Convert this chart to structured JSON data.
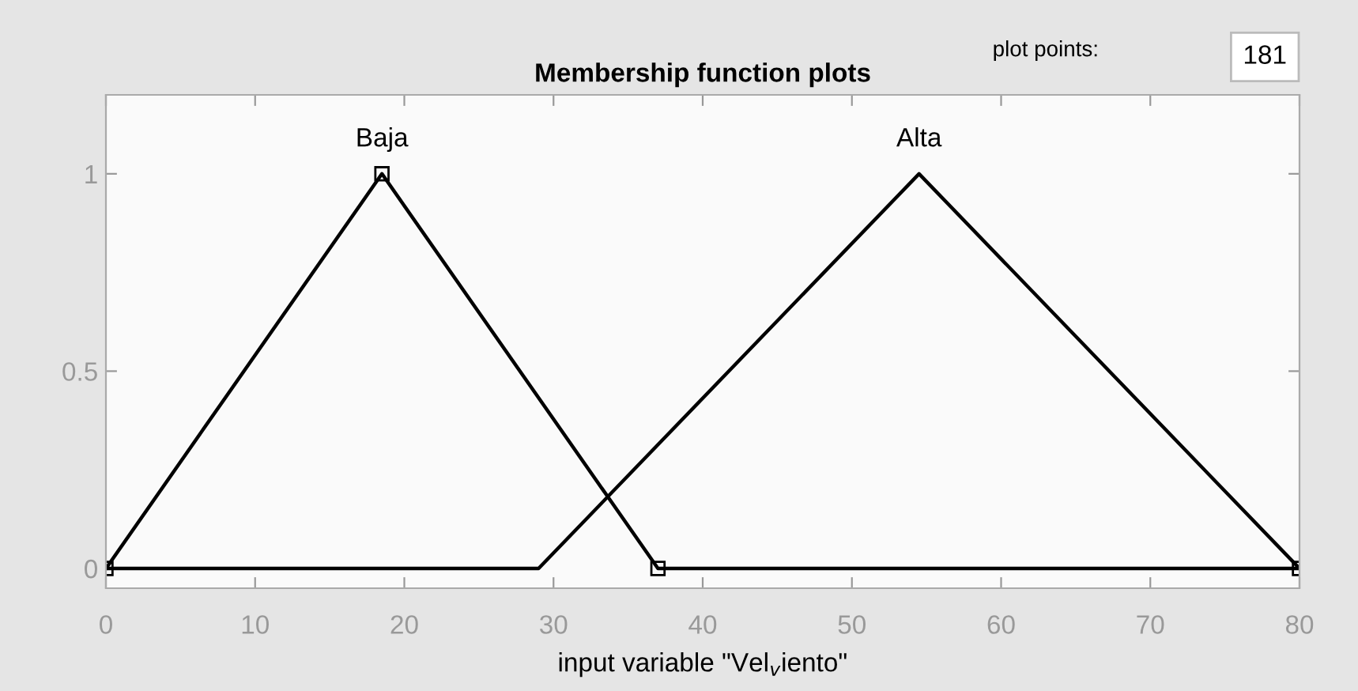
{
  "chart_data": {
    "type": "line",
    "title": "Membership function plots",
    "xlabel": "input variable \"Vel$_{v}$iento\"",
    "series": [
      {
        "name": "Baja",
        "color": "#000000",
        "x": [
          0,
          18.5,
          37,
          80
        ],
        "values": [
          0,
          1,
          0,
          0
        ],
        "marker": "square"
      },
      {
        "name": "Alta",
        "color": "#000000",
        "x": [
          0,
          29,
          54.5,
          80
        ],
        "values": [
          0,
          0,
          1,
          0
        ],
        "marker": "none"
      }
    ],
    "annotations": [
      "plot points:",
      "181"
    ],
    "xlim": [
      0,
      80
    ],
    "ylim": [
      -0.05,
      1.2
    ],
    "xticks": [
      0,
      10,
      20,
      30,
      40,
      50,
      60,
      70,
      80
    ],
    "yticks": [
      0,
      0.5,
      1
    ],
    "grid": false,
    "legend": false,
    "line_style": "solid"
  }
}
